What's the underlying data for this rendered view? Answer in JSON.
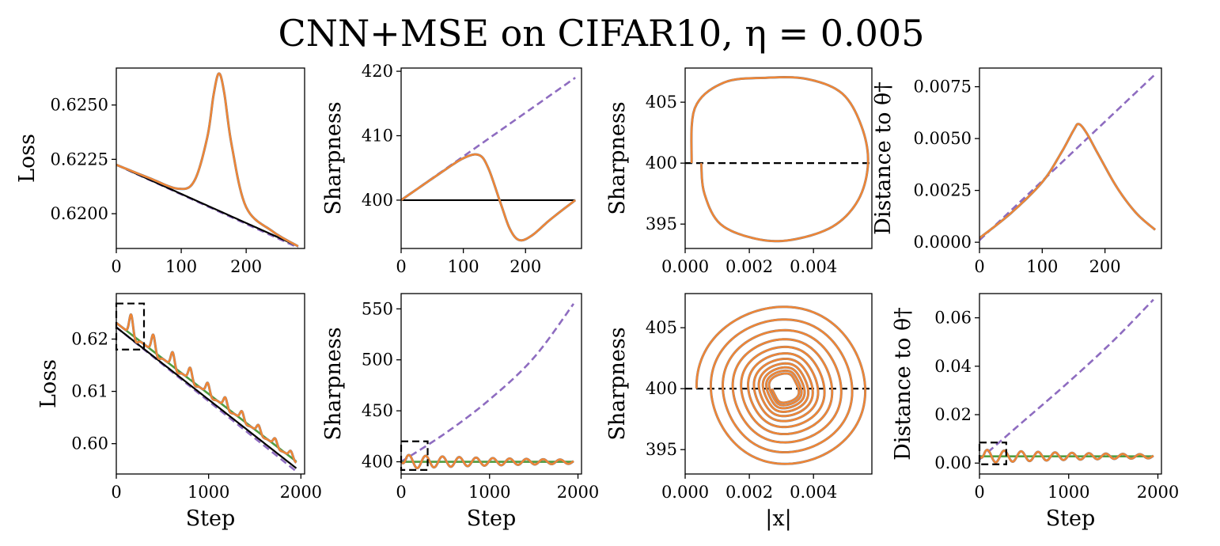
{
  "figure": {
    "title": "CNN+MSE on CIFAR10, η = 0.005",
    "colors": {
      "blue": "#3b75af",
      "orange": "#ef8636",
      "green": "#519e3e",
      "purple": "#8e6cc0",
      "black": "#000000"
    }
  },
  "chart_data": [
    {
      "id": "r1c1",
      "type": "line",
      "ylabel": "Loss",
      "xlabel": "",
      "xlim": [
        0,
        290
      ],
      "ylim": [
        0.6184,
        0.6267
      ],
      "xticks": [
        0,
        100,
        200
      ],
      "xtick_labels": [
        "0",
        "100",
        "200"
      ],
      "yticks": [
        0.62,
        0.6225,
        0.625
      ],
      "ytick_labels": [
        "0.6200",
        "0.6225",
        "0.6250"
      ],
      "series": [
        {
          "name": "purple-dashed",
          "color": "purple",
          "style": "dashed",
          "x": [
            0,
            280
          ],
          "y": [
            0.62225,
            0.61844
          ]
        },
        {
          "name": "black",
          "color": "black",
          "style": "solid",
          "x": [
            0,
            280
          ],
          "y": [
            0.62225,
            0.6185
          ]
        },
        {
          "name": "blue",
          "color": "blue",
          "style": "solid",
          "x": [
            0,
            50,
            95,
            120,
            140,
            150,
            158,
            166,
            178,
            200,
            240,
            280
          ],
          "y": [
            0.62225,
            0.62165,
            0.62115,
            0.6215,
            0.6235,
            0.6255,
            0.62645,
            0.6256,
            0.6231,
            0.6203,
            0.6192,
            0.6185
          ]
        },
        {
          "name": "orange",
          "color": "orange",
          "style": "solid",
          "x": [
            0,
            50,
            95,
            120,
            140,
            150,
            158,
            166,
            178,
            200,
            240,
            280
          ],
          "y": [
            0.62225,
            0.62165,
            0.62115,
            0.6215,
            0.6235,
            0.6255,
            0.62645,
            0.6256,
            0.6231,
            0.6203,
            0.6192,
            0.6185
          ]
        }
      ]
    },
    {
      "id": "r1c2",
      "type": "line",
      "ylabel": "Sharpness",
      "xlabel": "",
      "xlim": [
        0,
        290
      ],
      "ylim": [
        392.5,
        420.5
      ],
      "xticks": [
        0,
        100,
        200
      ],
      "xtick_labels": [
        "0",
        "100",
        "200"
      ],
      "yticks": [
        400,
        410,
        420
      ],
      "ytick_labels": [
        "400",
        "410",
        "420"
      ],
      "series": [
        {
          "name": "purple-dashed",
          "color": "purple",
          "style": "dashed",
          "x": [
            0,
            280
          ],
          "y": [
            400,
            419
          ]
        },
        {
          "name": "black",
          "color": "black",
          "style": "solid",
          "x": [
            0,
            280
          ],
          "y": [
            400,
            400
          ]
        },
        {
          "name": "blue",
          "color": "blue",
          "style": "solid",
          "x": [
            0,
            60,
            100,
            125,
            140,
            160,
            175,
            190,
            210,
            240,
            280
          ],
          "y": [
            400,
            404,
            406.5,
            407,
            405,
            399.5,
            395.5,
            393.8,
            394.5,
            397,
            400
          ]
        },
        {
          "name": "orange",
          "color": "orange",
          "style": "solid",
          "x": [
            0,
            60,
            100,
            125,
            140,
            160,
            175,
            190,
            210,
            240,
            280
          ],
          "y": [
            400,
            404,
            406.5,
            407,
            405,
            399.5,
            395.5,
            393.8,
            394.5,
            397,
            400
          ]
        }
      ]
    },
    {
      "id": "r1c3",
      "type": "line",
      "ylabel": "Sharpness",
      "xlabel": "",
      "xlim": [
        0,
        0.00582
      ],
      "ylim": [
        393,
        407.8
      ],
      "xticks": [
        0,
        0.002,
        0.004
      ],
      "xtick_labels": [
        "0.000",
        "0.002",
        "0.004"
      ],
      "yticks": [
        395,
        400,
        405
      ],
      "ytick_labels": [
        "395",
        "400",
        "405"
      ],
      "series": [
        {
          "name": "black-dashed",
          "color": "black",
          "style": "dashed",
          "x": [
            0,
            0.00582
          ],
          "y": [
            400,
            400
          ]
        },
        {
          "name": "blue",
          "color": "blue",
          "style": "solid",
          "x": [
            0.0002,
            0.0003,
            0.0012,
            0.0025,
            0.0038,
            0.0049,
            0.0055,
            0.0057,
            0.0054,
            0.0046,
            0.0033,
            0.0022,
            0.0011,
            0.0006,
            0.0005
          ],
          "y": [
            400,
            404.5,
            406.6,
            407,
            406.9,
            405.7,
            403,
            400,
            397,
            394.8,
            393.7,
            393.8,
            395,
            397.5,
            400
          ]
        },
        {
          "name": "orange",
          "color": "orange",
          "style": "solid",
          "x": [
            0.0002,
            0.0003,
            0.0012,
            0.0025,
            0.0038,
            0.0049,
            0.0055,
            0.0057,
            0.0054,
            0.0046,
            0.0033,
            0.0022,
            0.0011,
            0.0006,
            0.0005
          ],
          "y": [
            400,
            404.5,
            406.6,
            407,
            406.9,
            405.7,
            403,
            400,
            397,
            394.8,
            393.7,
            393.8,
            395,
            397.5,
            400
          ]
        }
      ]
    },
    {
      "id": "r1c4",
      "type": "line",
      "ylabel": "Distance to θ†",
      "xlabel": "",
      "xlim": [
        0,
        290
      ],
      "ylim": [
        -0.0003,
        0.0084
      ],
      "xticks": [
        0,
        100,
        200
      ],
      "xtick_labels": [
        "0",
        "100",
        "200"
      ],
      "yticks": [
        0,
        0.0025,
        0.005,
        0.0075
      ],
      "ytick_labels": [
        "0.0000",
        "0.0025",
        "0.0050",
        "0.0075"
      ],
      "series": [
        {
          "name": "purple-dashed",
          "color": "purple",
          "style": "dashed",
          "x": [
            0,
            280
          ],
          "y": [
            0.0001,
            0.0081
          ]
        },
        {
          "name": "blue",
          "color": "blue",
          "style": "solid",
          "x": [
            0,
            50,
            100,
            130,
            150,
            158,
            170,
            190,
            220,
            250,
            280
          ],
          "y": [
            0.0002,
            0.0014,
            0.0029,
            0.0043,
            0.0054,
            0.0057,
            0.0053,
            0.0042,
            0.0026,
            0.0014,
            0.0006
          ]
        },
        {
          "name": "orange",
          "color": "orange",
          "style": "solid",
          "x": [
            0,
            50,
            100,
            130,
            150,
            158,
            170,
            190,
            220,
            250,
            280
          ],
          "y": [
            0.0002,
            0.0014,
            0.0029,
            0.0043,
            0.0054,
            0.0057,
            0.0053,
            0.0042,
            0.0026,
            0.0014,
            0.0006
          ]
        }
      ]
    },
    {
      "id": "r2c1",
      "type": "line",
      "ylabel": "Loss",
      "xlabel": "Step",
      "xlim": [
        0,
        2040
      ],
      "ylim": [
        0.5942,
        0.6287
      ],
      "xticks": [
        0,
        1000,
        2000
      ],
      "xtick_labels": [
        "0",
        "1000",
        "2000"
      ],
      "yticks": [
        0.6,
        0.61,
        0.62
      ],
      "ytick_labels": [
        "0.60",
        "0.61",
        "0.62"
      ],
      "zoom_box": {
        "x": [
          0,
          300
        ],
        "y": [
          0.618,
          0.6268
        ]
      },
      "series": [
        {
          "name": "purple-dashed",
          "color": "purple",
          "style": "dashed",
          "x": [
            0,
            1950
          ],
          "y": [
            0.62225,
            0.5947
          ]
        },
        {
          "name": "black",
          "color": "black",
          "style": "solid",
          "x": [
            0,
            1950
          ],
          "y": [
            0.62225,
            0.5953
          ]
        },
        {
          "name": "green",
          "color": "green",
          "style": "solid",
          "x": [
            0,
            1950
          ],
          "y": [
            0.6231,
            0.5966
          ]
        },
        {
          "name": "blue",
          "color": "blue",
          "style": "oscillating",
          "x": [
            0,
            1950
          ],
          "y": [
            0.6231,
            0.5966
          ],
          "peak_steps": [
            160,
            400,
            610,
            800,
            990,
            1180,
            1360,
            1540,
            1720,
            1890
          ],
          "peak_heights": [
            0.0038,
            0.0032,
            0.0027,
            0.0023,
            0.002,
            0.0018,
            0.0016,
            0.0014,
            0.0013,
            0.0012
          ]
        },
        {
          "name": "orange",
          "color": "orange",
          "style": "oscillating",
          "x": [
            0,
            1950
          ],
          "y": [
            0.6231,
            0.5966
          ],
          "peak_steps": [
            160,
            400,
            610,
            800,
            990,
            1180,
            1360,
            1540,
            1720,
            1890
          ],
          "peak_heights": [
            0.0038,
            0.0032,
            0.0027,
            0.0023,
            0.002,
            0.0018,
            0.0016,
            0.0014,
            0.0013,
            0.0012
          ]
        }
      ]
    },
    {
      "id": "r2c2",
      "type": "line",
      "ylabel": "Sharpness",
      "xlabel": "Step",
      "xlim": [
        0,
        2040
      ],
      "ylim": [
        388,
        565
      ],
      "xticks": [
        0,
        1000,
        2000
      ],
      "xtick_labels": [
        "0",
        "1000",
        "2000"
      ],
      "yticks": [
        400,
        450,
        500,
        550
      ],
      "ytick_labels": [
        "400",
        "450",
        "500",
        "550"
      ],
      "zoom_box": {
        "x": [
          0,
          300
        ],
        "y": [
          392,
          420
        ]
      },
      "series": [
        {
          "name": "purple-dashed",
          "color": "purple",
          "style": "dashed",
          "x": [
            0,
            500,
            1000,
            1500,
            1950
          ],
          "y": [
            400,
            428,
            461,
            502,
            555
          ]
        },
        {
          "name": "black",
          "color": "black",
          "style": "solid",
          "x": [
            0,
            1950
          ],
          "y": [
            400,
            400
          ]
        },
        {
          "name": "green",
          "color": "green",
          "style": "solid",
          "x": [
            0,
            1950
          ],
          "y": [
            400,
            400
          ]
        },
        {
          "name": "blue",
          "color": "blue",
          "style": "oscillating",
          "x": [
            0,
            1950
          ],
          "y": [
            400,
            400
          ],
          "period_steps": 190,
          "amplitude_start": 7,
          "amplitude_end": 2
        },
        {
          "name": "orange",
          "color": "orange",
          "style": "oscillating",
          "x": [
            0,
            1950
          ],
          "y": [
            400,
            400
          ],
          "period_steps": 190,
          "amplitude_start": 7,
          "amplitude_end": 2
        }
      ]
    },
    {
      "id": "r2c3",
      "type": "line",
      "ylabel": "Sharpness",
      "xlabel": "|x|",
      "xlim": [
        0,
        0.00582
      ],
      "ylim": [
        393,
        407.8
      ],
      "xticks": [
        0,
        0.002,
        0.004
      ],
      "xtick_labels": [
        "0.000",
        "0.002",
        "0.004"
      ],
      "yticks": [
        395,
        400,
        405
      ],
      "ytick_labels": [
        "395",
        "400",
        "405"
      ],
      "series": [
        {
          "name": "black-dashed",
          "color": "black",
          "style": "dashed",
          "x": [
            0,
            0.00582
          ],
          "y": [
            400,
            400
          ]
        },
        {
          "name": "blue",
          "color": "blue",
          "style": "spiral",
          "center": [
            0.0031,
            400
          ],
          "start_radius": [
            0.0028,
            7
          ],
          "end_radius": [
            0.0004,
            1.1
          ],
          "turns": 11
        },
        {
          "name": "orange",
          "color": "orange",
          "style": "spiral",
          "center": [
            0.0031,
            400
          ],
          "start_radius": [
            0.0028,
            7
          ],
          "end_radius": [
            0.0004,
            1.1
          ],
          "turns": 11
        }
      ]
    },
    {
      "id": "r2c4",
      "type": "line",
      "ylabel": "Distance to θ†",
      "xlabel": "Step",
      "xlim": [
        0,
        2040
      ],
      "ylim": [
        -0.0045,
        0.07
      ],
      "xticks": [
        0,
        1000,
        2000
      ],
      "xtick_labels": [
        "0",
        "1000",
        "2000"
      ],
      "yticks": [
        0,
        0.02,
        0.04,
        0.06
      ],
      "ytick_labels": [
        "0.00",
        "0.02",
        "0.04",
        "0.06"
      ],
      "zoom_box": {
        "x": [
          0,
          300
        ],
        "y": [
          -0.0005,
          0.0085
        ]
      },
      "series": [
        {
          "name": "purple-dashed",
          "color": "purple",
          "style": "dashed",
          "x": [
            0,
            500,
            1000,
            1500,
            1950
          ],
          "y": [
            0.0015,
            0.0175,
            0.0335,
            0.0505,
            0.0675
          ]
        },
        {
          "name": "green",
          "color": "green",
          "style": "solid",
          "x": [
            0,
            1950
          ],
          "y": [
            0.0028,
            0.0028
          ]
        },
        {
          "name": "blue",
          "color": "blue",
          "style": "oscillating",
          "x": [
            0,
            1950
          ],
          "y": [
            0.0028,
            0.0028
          ],
          "period_steps": 190,
          "amplitude_start": 0.0028,
          "amplitude_end": 0.0008
        },
        {
          "name": "orange",
          "color": "orange",
          "style": "oscillating",
          "x": [
            0,
            1950
          ],
          "y": [
            0.0028,
            0.0028
          ],
          "period_steps": 190,
          "amplitude_start": 0.0028,
          "amplitude_end": 0.0008
        }
      ]
    }
  ]
}
